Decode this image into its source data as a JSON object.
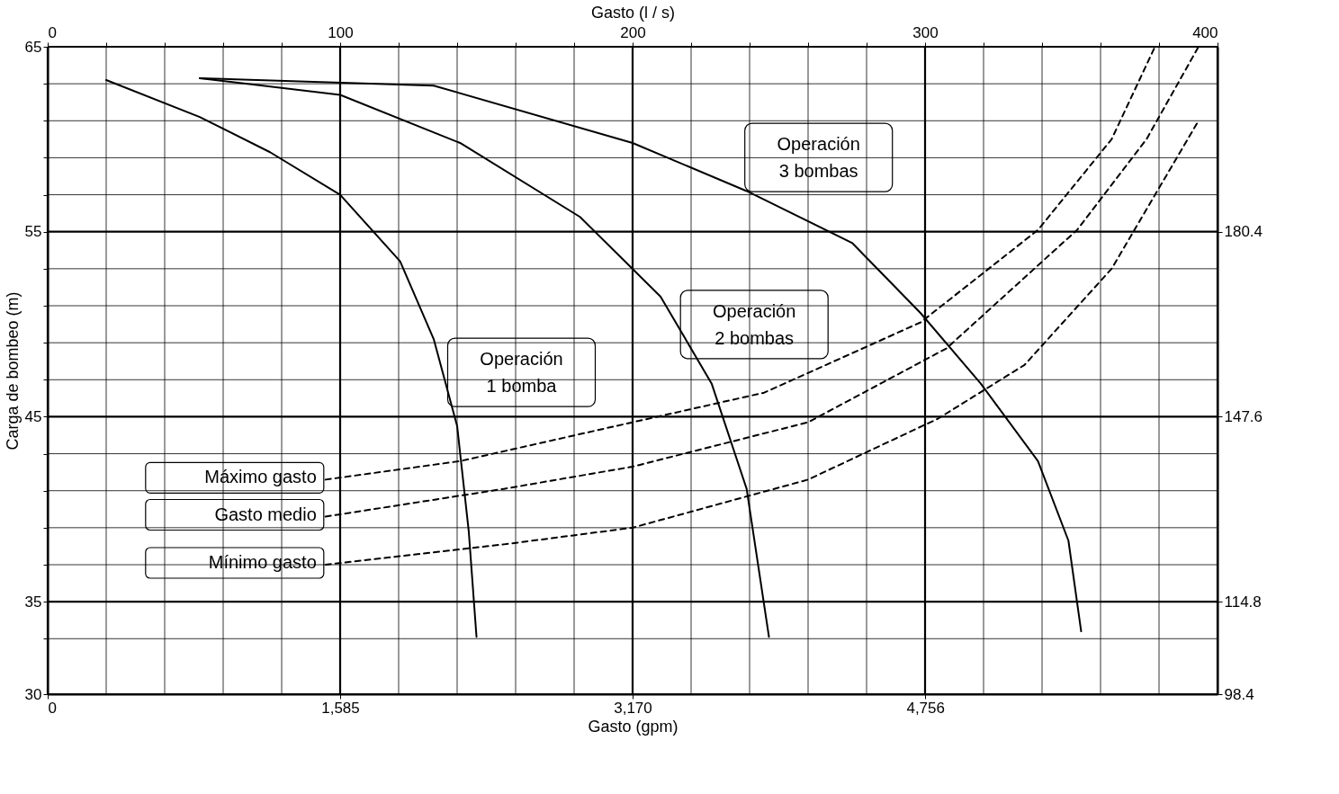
{
  "chart_data": {
    "type": "line",
    "xlabel": "Gasto  (gpm)",
    "x2label": "Gasto  (l / s)",
    "ylabel": "Carga de bombeo  (m)",
    "xlim": [
      0,
      6340
    ],
    "xticks": [
      0,
      {
        "value": 1585,
        "label": "1,585"
      },
      {
        "value": 3170,
        "label": "3,170"
      },
      {
        "value": 4756,
        "label": "4,756"
      }
    ],
    "x2lim": [
      0,
      400
    ],
    "x2ticks": [
      0,
      {
        "value": 20,
        "label": null
      },
      {
        "value": 40,
        "label": null
      },
      {
        "value": 60,
        "label": null
      },
      {
        "value": 80,
        "label": null
      },
      100,
      {
        "value": 120,
        "label": null
      },
      {
        "value": 140,
        "label": null
      },
      {
        "value": 160,
        "label": null
      },
      {
        "value": 180,
        "label": null
      },
      200,
      {
        "value": 220,
        "label": null
      },
      {
        "value": 240,
        "label": null
      },
      {
        "value": 260,
        "label": null
      },
      {
        "value": 280,
        "label": null
      },
      300,
      {
        "value": 320,
        "label": null
      },
      {
        "value": 340,
        "label": null
      },
      {
        "value": 360,
        "label": null
      },
      {
        "value": 380,
        "label": null
      },
      400
    ],
    "ylim": [
      30,
      65
    ],
    "yticks": [
      30,
      {
        "value": 33,
        "label": null
      },
      35,
      {
        "value": 37,
        "label": null
      },
      {
        "value": 39,
        "label": null
      },
      {
        "value": 41,
        "label": null
      },
      {
        "value": 43,
        "label": null
      },
      45,
      {
        "value": 47,
        "label": null
      },
      {
        "value": 49,
        "label": null
      },
      {
        "value": 51,
        "label": null
      },
      {
        "value": 53,
        "label": null
      },
      55,
      {
        "value": 57,
        "label": null
      },
      {
        "value": 59,
        "label": null
      },
      {
        "value": 61,
        "label": null
      },
      {
        "value": 63,
        "label": null
      },
      65
    ],
    "y2lim": [
      98.4,
      213.2
    ],
    "y2ticks": [
      98.4,
      114.8,
      147.6,
      180.4
    ],
    "grid": true,
    "legend": false,
    "marker": "none",
    "series": [
      {
        "name": "Operación 1 bomba",
        "color": "#000000",
        "line_style": "solid",
        "x": [
          317,
          824,
          1205,
          1585,
          1910,
          2092,
          2219,
          2282,
          2324
        ],
        "values": [
          63.2,
          61.2,
          59.3,
          57.0,
          53.4,
          49.2,
          44.5,
          38.8,
          33.1
        ]
      },
      {
        "name": "Operación 2 bombas",
        "color": "#000000",
        "line_style": "solid",
        "x": [
          824,
          1585,
          2235,
          2885,
          3321,
          3598,
          3788,
          3909
        ],
        "values": [
          63.3,
          62.4,
          59.8,
          55.8,
          51.5,
          46.8,
          41.1,
          33.1
        ]
      },
      {
        "name": "Operación 3 bombas",
        "color": "#000000",
        "line_style": "solid",
        "x": [
          824,
          2092,
          3170,
          3788,
          4359,
          4731,
          5056,
          5367,
          5532,
          5601
        ],
        "values": [
          63.3,
          62.9,
          59.8,
          57.2,
          54.4,
          50.6,
          46.8,
          42.6,
          38.3,
          33.4
        ]
      },
      {
        "name": "Máximo gasto",
        "color": "#000000",
        "line_style": "dashed",
        "x": [
          1506,
          2235,
          3170,
          3883,
          4731,
          5367,
          5766,
          6001
        ],
        "values": [
          41.6,
          42.6,
          44.7,
          46.3,
          50.1,
          55.1,
          60.0,
          65.0
        ]
      },
      {
        "name": "Gasto medio",
        "color": "#000000",
        "line_style": "dashed",
        "x": [
          1506,
          2473,
          3170,
          4121,
          4872,
          5579,
          5955,
          6237
        ],
        "values": [
          39.6,
          41.1,
          42.3,
          44.7,
          48.7,
          55.1,
          60.0,
          65.0
        ]
      },
      {
        "name": "Mínimo gasto",
        "color": "#000000",
        "line_style": "dashed",
        "x": [
          1506,
          2473,
          3170,
          4121,
          4826,
          5294,
          5766,
          6096,
          6237
        ],
        "values": [
          37.0,
          38.1,
          39.0,
          41.6,
          44.9,
          47.8,
          53.0,
          58.6,
          61.0
        ]
      }
    ]
  }
}
